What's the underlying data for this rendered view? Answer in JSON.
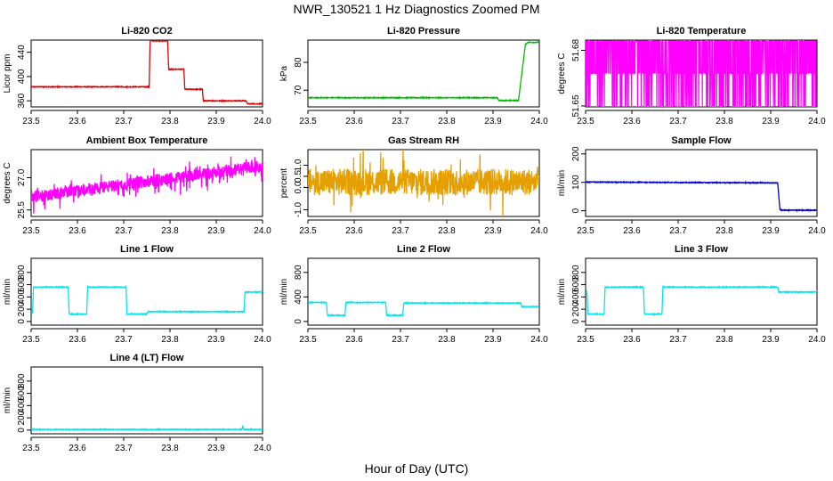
{
  "figure": {
    "title": "NWR_130521  1 Hz Diagnostics Zoomed PM",
    "xlabel": "Hour of Day (UTC)",
    "x_ticks": [
      "23.5",
      "23.6",
      "23.7",
      "23.8",
      "23.9",
      "24.0"
    ]
  },
  "chart_data": [
    {
      "type": "line",
      "title": "Li-820 CO2",
      "ylabel": "Licor ppm",
      "color": "#dd0000",
      "xlim": [
        23.5,
        24.0
      ],
      "ylim": [
        350,
        460
      ],
      "y_ticks": [
        "360",
        "400",
        "440"
      ],
      "y_tick_values": [
        360,
        400,
        440
      ],
      "series": [
        {
          "x": [
            23.5,
            23.755,
            23.757,
            23.795,
            23.797,
            23.83,
            23.832,
            23.87,
            23.872,
            23.965,
            23.967,
            24.0
          ],
          "y": [
            383,
            383,
            459,
            459,
            412,
            412,
            379,
            379,
            360,
            360,
            355,
            355
          ]
        }
      ]
    },
    {
      "type": "line",
      "title": "Li-820 Pressure",
      "ylabel": "kPa",
      "color": "#00bb00",
      "xlim": [
        23.5,
        24.0
      ],
      "ylim": [
        64,
        88
      ],
      "y_ticks": [
        "70",
        "80"
      ],
      "y_tick_values": [
        70,
        80
      ],
      "series": [
        {
          "x": [
            23.5,
            23.91,
            23.912,
            23.955,
            23.97,
            23.975,
            24.0
          ],
          "y": [
            67.3,
            67.3,
            66.3,
            66.3,
            86.5,
            87.2,
            87.2
          ]
        }
      ]
    },
    {
      "type": "line",
      "title": "Li-820 Temperature",
      "ylabel": "degrees C",
      "color": "#ff00ff",
      "xlim": [
        23.5,
        24.0
      ],
      "ylim": [
        51.6495,
        51.6855
      ],
      "y_ticks": [
        "51.65",
        "51.68"
      ],
      "y_tick_values": [
        51.65,
        51.68
      ],
      "series": [
        {
          "levels": [
            51.65,
            51.6675,
            51.685
          ],
          "x_range": [
            23.5,
            24.0
          ]
        }
      ]
    },
    {
      "type": "line",
      "title": "Ambient Box Temperature",
      "ylabel": "degrees C",
      "color": "#ff00ff",
      "xlim": [
        23.5,
        24.0
      ],
      "ylim": [
        25.2,
        28.3
      ],
      "y_ticks": [
        "25.5",
        "27.0"
      ],
      "y_tick_values": [
        25.5,
        27.0
      ],
      "series": [
        {
          "x": [
            23.5,
            24.0
          ],
          "y": [
            26.1,
            27.55
          ]
        }
      ]
    },
    {
      "type": "line",
      "title": "Gas Stream RH",
      "ylabel": "percent",
      "color": "#e5a000",
      "xlim": [
        23.5,
        24.0
      ],
      "ylim": [
        -1.3,
        1.7
      ],
      "y_ticks": [
        "-1.0",
        "0.0",
        "0.5",
        "1.0"
      ],
      "y_tick_values": [
        -1.0,
        0.0,
        0.5,
        1.0
      ],
      "series": [
        {
          "x": [
            23.5,
            24.0
          ],
          "y": [
            0.25,
            0.25
          ]
        }
      ]
    },
    {
      "type": "line",
      "title": "Sample Flow",
      "ylabel": "ml/min",
      "color": "#0000cc",
      "xlim": [
        23.5,
        24.0
      ],
      "ylim": [
        -20,
        215
      ],
      "y_ticks": [
        "0",
        "100",
        "200"
      ],
      "y_tick_values": [
        0,
        100,
        200
      ],
      "series": [
        {
          "x": [
            23.5,
            23.915,
            23.92,
            23.925,
            24.0
          ],
          "y": [
            101,
            98,
            5,
            2,
            2
          ]
        }
      ]
    },
    {
      "type": "line",
      "title": "Line 1 Flow",
      "ylabel": "ml/min",
      "color": "#00e5ee",
      "xlim": [
        23.5,
        24.0
      ],
      "ylim": [
        -60,
        1030
      ],
      "y_ticks": [
        "0",
        "200",
        "400",
        "600",
        "800"
      ],
      "y_tick_values": [
        0,
        200,
        400,
        600,
        800
      ],
      "series": [
        {
          "x": [
            23.5,
            23.503,
            23.505,
            23.58,
            23.582,
            23.62,
            23.622,
            23.705,
            23.707,
            23.75,
            23.752,
            23.96,
            23.962,
            24.0
          ],
          "y": [
            130,
            130,
            560,
            560,
            120,
            120,
            560,
            560,
            120,
            120,
            160,
            160,
            480,
            480
          ]
        }
      ]
    },
    {
      "type": "line",
      "title": "Line 2 Flow",
      "ylabel": "ml/min",
      "color": "#00e5ee",
      "xlim": [
        23.5,
        24.0
      ],
      "ylim": [
        -60,
        1030
      ],
      "y_ticks": [
        "0",
        "400",
        "800"
      ],
      "y_tick_values": [
        0,
        400,
        800
      ],
      "series": [
        {
          "x": [
            23.5,
            23.54,
            23.542,
            23.58,
            23.582,
            23.668,
            23.67,
            23.705,
            23.707,
            23.96,
            23.962,
            24.0
          ],
          "y": [
            310,
            310,
            100,
            100,
            310,
            310,
            100,
            100,
            300,
            300,
            240,
            240
          ]
        }
      ]
    },
    {
      "type": "line",
      "title": "Line 3 Flow",
      "ylabel": "ml/min",
      "color": "#00e5ee",
      "xlim": [
        23.5,
        24.0
      ],
      "ylim": [
        -60,
        1030
      ],
      "y_ticks": [
        "0",
        "200",
        "400",
        "600",
        "800"
      ],
      "y_tick_values": [
        0,
        200,
        400,
        600,
        800
      ],
      "series": [
        {
          "x": [
            23.5,
            23.503,
            23.505,
            23.54,
            23.542,
            23.625,
            23.627,
            23.665,
            23.667,
            23.915,
            23.917,
            24.0
          ],
          "y": [
            480,
            480,
            120,
            120,
            560,
            560,
            120,
            120,
            560,
            560,
            480,
            480
          ]
        }
      ]
    },
    {
      "type": "line",
      "title": "Line 4 (LT) Flow",
      "ylabel": "ml/min",
      "color": "#00e5ee",
      "xlim": [
        23.5,
        24.0
      ],
      "ylim": [
        -60,
        1030
      ],
      "y_ticks": [
        "0",
        "200",
        "400",
        "600",
        "800"
      ],
      "y_tick_values": [
        0,
        200,
        400,
        600,
        800
      ],
      "series": [
        {
          "x": [
            23.5,
            23.955,
            23.957,
            23.959,
            23.961,
            24.0
          ],
          "y": [
            10,
            10,
            70,
            10,
            10,
            10
          ]
        }
      ]
    }
  ]
}
